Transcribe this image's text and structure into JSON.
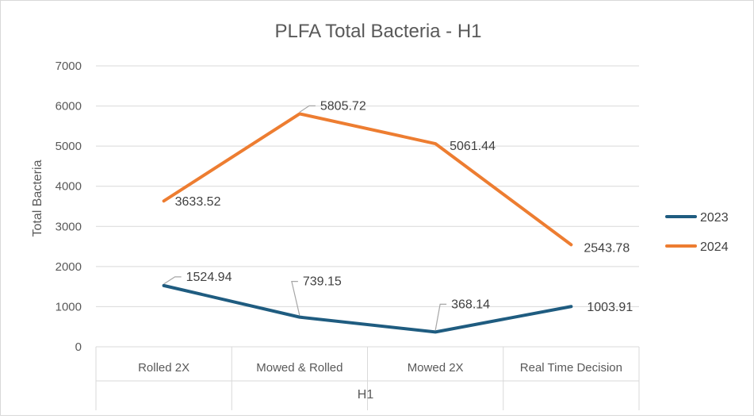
{
  "chart_data": {
    "type": "line",
    "title": "PLFA Total Bacteria - H1",
    "xlabel": "H1",
    "ylabel": "Total Bacteria",
    "categories": [
      "Rolled 2X",
      "Mowed & Rolled",
      "Mowed 2X",
      "Real Time Decision"
    ],
    "ylim": [
      0,
      7000
    ],
    "yticks": [
      0,
      1000,
      2000,
      3000,
      4000,
      5000,
      6000,
      7000
    ],
    "grid": true,
    "legend_position": "right",
    "series": [
      {
        "name": "2023",
        "color": "#1f5c80",
        "values": [
          1524.94,
          739.15,
          368.14,
          1003.91
        ],
        "labels": [
          "1524.94",
          "739.15",
          "368.14",
          "1003.91"
        ]
      },
      {
        "name": "2024",
        "color": "#ed7d31",
        "values": [
          3633.52,
          5805.72,
          5061.44,
          2543.78
        ],
        "labels": [
          "3633.52",
          "5805.72",
          "5061.44",
          "2543.78"
        ]
      }
    ]
  }
}
